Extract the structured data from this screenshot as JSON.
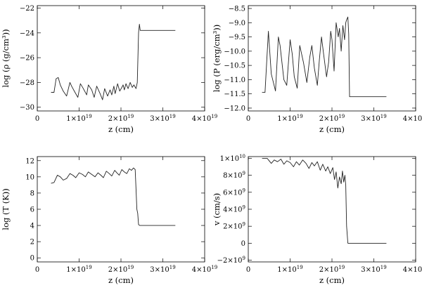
{
  "chart_data": [
    {
      "type": "line",
      "xlabel": "z (cm)",
      "ylabel": "log (ρ (g/cm³))",
      "xlim": [
        0,
        4e+19
      ],
      "ylim": [
        -30.3,
        -21.8
      ],
      "xticks": [
        {
          "value": 0,
          "label": "0"
        },
        {
          "value": 1e+19,
          "label": "1×10",
          "exp": "19"
        },
        {
          "value": 2e+19,
          "label": "2×10",
          "exp": "19"
        },
        {
          "value": 3e+19,
          "label": "3×10",
          "exp": "19"
        },
        {
          "value": 4e+19,
          "label": "4×10",
          "exp": "19"
        }
      ],
      "yticks": [
        {
          "value": -30,
          "label": "−30"
        },
        {
          "value": -28,
          "label": "−28"
        },
        {
          "value": -26,
          "label": "−26"
        },
        {
          "value": -24,
          "label": "−24"
        },
        {
          "value": -22,
          "label": "−22"
        }
      ],
      "x_unit": 1e+19,
      "x": [
        0.33,
        0.4,
        0.45,
        0.5,
        0.55,
        0.62,
        0.7,
        0.78,
        0.82,
        0.9,
        0.97,
        1.03,
        1.1,
        1.18,
        1.22,
        1.3,
        1.36,
        1.42,
        1.5,
        1.56,
        1.61,
        1.68,
        1.74,
        1.78,
        1.83,
        1.86,
        1.92,
        1.97,
        2.02,
        2.05,
        2.08,
        2.12,
        2.17,
        2.22,
        2.27,
        2.31,
        2.36,
        2.39,
        2.42,
        2.44,
        2.46,
        2.5,
        2.6,
        2.8,
        3.0,
        3.2,
        3.3
      ],
      "y": [
        -28.8,
        -28.8,
        -27.7,
        -27.6,
        -28.2,
        -28.7,
        -29.1,
        -28.0,
        -28.3,
        -28.8,
        -29.2,
        -28.1,
        -28.5,
        -29.0,
        -28.2,
        -28.6,
        -29.2,
        -28.3,
        -28.9,
        -29.4,
        -28.5,
        -29.1,
        -28.6,
        -29.0,
        -28.3,
        -28.9,
        -28.1,
        -28.7,
        -28.4,
        -28.2,
        -28.6,
        -28.1,
        -28.5,
        -28.0,
        -28.4,
        -28.2,
        -28.5,
        -28.0,
        -24.0,
        -23.3,
        -23.8,
        -23.8,
        -23.8,
        -23.8,
        -23.8,
        -23.8,
        -23.8
      ]
    },
    {
      "type": "line",
      "xlabel": "z (cm)",
      "ylabel": "log (P (erg/cm³))",
      "xlim": [
        0,
        4e+19
      ],
      "ylim": [
        -12.1,
        -8.4
      ],
      "xticks": [
        {
          "value": 0,
          "label": "0"
        },
        {
          "value": 1e+19,
          "label": "1×10",
          "exp": "19"
        },
        {
          "value": 2e+19,
          "label": "2×10",
          "exp": "19"
        },
        {
          "value": 3e+19,
          "label": "3×10",
          "exp": "19"
        },
        {
          "value": 4e+19,
          "label": "4×10",
          "exp": "19"
        }
      ],
      "yticks": [
        {
          "value": -12.0,
          "label": "−12.0"
        },
        {
          "value": -11.5,
          "label": "−11.5"
        },
        {
          "value": -11.0,
          "label": "−11.0"
        },
        {
          "value": -10.5,
          "label": "−10.5"
        },
        {
          "value": -10.0,
          "label": "−10.0"
        },
        {
          "value": -9.5,
          "label": "−9.5"
        },
        {
          "value": -9.0,
          "label": "−9.0"
        },
        {
          "value": -8.5,
          "label": "−8.5"
        }
      ],
      "x_unit": 1e+19,
      "x": [
        0.33,
        0.4,
        0.48,
        0.55,
        0.65,
        0.72,
        0.76,
        0.85,
        0.92,
        1.0,
        1.05,
        1.1,
        1.17,
        1.23,
        1.32,
        1.4,
        1.47,
        1.52,
        1.58,
        1.65,
        1.7,
        1.75,
        1.8,
        1.87,
        1.92,
        1.97,
        2.0,
        2.05,
        2.1,
        2.15,
        2.18,
        2.22,
        2.26,
        2.3,
        2.33,
        2.35,
        2.38,
        2.4,
        2.42,
        2.6,
        2.8,
        3.0,
        3.2,
        3.3
      ],
      "y": [
        -11.45,
        -11.45,
        -9.3,
        -10.8,
        -11.4,
        -9.5,
        -9.8,
        -11.0,
        -11.2,
        -9.6,
        -10.1,
        -10.9,
        -11.3,
        -9.8,
        -10.4,
        -11.1,
        -10.2,
        -9.8,
        -10.6,
        -11.2,
        -10.3,
        -9.5,
        -10.1,
        -10.9,
        -10.4,
        -9.3,
        -9.6,
        -10.7,
        -9.0,
        -9.5,
        -9.2,
        -10.0,
        -9.1,
        -9.6,
        -9.0,
        -8.9,
        -8.8,
        -9.4,
        -11.6,
        -11.6,
        -11.6,
        -11.6,
        -11.6,
        -11.6
      ]
    },
    {
      "type": "line",
      "xlabel": "z (cm)",
      "ylabel": "log (T (K))",
      "xlim": [
        0,
        4e+19
      ],
      "ylim": [
        -0.5,
        12.5
      ],
      "xticks": [
        {
          "value": 0,
          "label": "0"
        },
        {
          "value": 1e+19,
          "label": "1×10",
          "exp": "19"
        },
        {
          "value": 2e+19,
          "label": "2×10",
          "exp": "19"
        },
        {
          "value": 3e+19,
          "label": "3×10",
          "exp": "19"
        },
        {
          "value": 4e+19,
          "label": "4×10",
          "exp": "19"
        }
      ],
      "yticks": [
        {
          "value": 0,
          "label": "0"
        },
        {
          "value": 2,
          "label": "2"
        },
        {
          "value": 4,
          "label": "4"
        },
        {
          "value": 6,
          "label": "6"
        },
        {
          "value": 8,
          "label": "8"
        },
        {
          "value": 10,
          "label": "10"
        },
        {
          "value": 12,
          "label": "12"
        }
      ],
      "x_unit": 1e+19,
      "x": [
        0.33,
        0.4,
        0.48,
        0.55,
        0.62,
        0.7,
        0.78,
        0.85,
        0.92,
        1.0,
        1.08,
        1.15,
        1.22,
        1.3,
        1.38,
        1.45,
        1.52,
        1.58,
        1.65,
        1.72,
        1.78,
        1.85,
        1.9,
        1.96,
        2.02,
        2.08,
        2.14,
        2.2,
        2.25,
        2.3,
        2.34,
        2.36,
        2.38,
        2.4,
        2.42,
        2.45,
        2.6,
        2.8,
        3.0,
        3.2,
        3.3
      ],
      "y": [
        9.2,
        9.3,
        10.2,
        10.0,
        9.6,
        9.8,
        10.4,
        10.2,
        9.9,
        10.5,
        10.3,
        10.0,
        10.6,
        10.3,
        10.0,
        10.5,
        10.2,
        9.9,
        10.7,
        10.4,
        10.1,
        10.8,
        10.5,
        10.2,
        10.9,
        10.6,
        10.4,
        11.0,
        10.8,
        11.1,
        10.9,
        8.5,
        6.0,
        5.5,
        4.1,
        4.0,
        4.0,
        4.0,
        4.0,
        4.0,
        4.0
      ]
    },
    {
      "type": "line",
      "xlabel": "z (cm)",
      "ylabel": "v (cm/s)",
      "xlim": [
        0,
        4e+19
      ],
      "ylim": [
        -2200000000.0,
        10200000000.0
      ],
      "xticks": [
        {
          "value": 0,
          "label": "0"
        },
        {
          "value": 1e+19,
          "label": "1×10",
          "exp": "19"
        },
        {
          "value": 2e+19,
          "label": "2×10",
          "exp": "19"
        },
        {
          "value": 3e+19,
          "label": "3×10",
          "exp": "19"
        },
        {
          "value": 4e+19,
          "label": "4×10",
          "exp": "19"
        }
      ],
      "yticks": [
        {
          "value": -2000000000.0,
          "label": "−2×10",
          "exp": "9"
        },
        {
          "value": 0,
          "label": "0"
        },
        {
          "value": 2000000000.0,
          "label": "2×10",
          "exp": "9"
        },
        {
          "value": 4000000000.0,
          "label": "4×10",
          "exp": "9"
        },
        {
          "value": 6000000000.0,
          "label": "6×10",
          "exp": "9"
        },
        {
          "value": 8000000000.0,
          "label": "8×10",
          "exp": "9"
        },
        {
          "value": 10000000000.0,
          "label": "1×10",
          "exp": "10"
        }
      ],
      "x_unit": 1e+19,
      "x": [
        0.33,
        0.45,
        0.55,
        0.62,
        0.7,
        0.78,
        0.85,
        0.92,
        1.0,
        1.08,
        1.15,
        1.22,
        1.3,
        1.38,
        1.45,
        1.52,
        1.58,
        1.65,
        1.72,
        1.78,
        1.85,
        1.9,
        1.96,
        2.02,
        2.06,
        2.1,
        2.14,
        2.18,
        2.22,
        2.25,
        2.28,
        2.31,
        2.33,
        2.35,
        2.38,
        2.4,
        2.6,
        2.8,
        3.0,
        3.2,
        3.3
      ],
      "y": [
        10000000000.0,
        10000000000.0,
        9400000000.0,
        9800000000.0,
        9600000000.0,
        9900000000.0,
        9300000000.0,
        9700000000.0,
        9500000000.0,
        9000000000.0,
        9600000000.0,
        9200000000.0,
        9800000000.0,
        9400000000.0,
        8800000000.0,
        9500000000.0,
        9100000000.0,
        9600000000.0,
        8600000000.0,
        9300000000.0,
        8500000000.0,
        9000000000.0,
        8200000000.0,
        8900000000.0,
        7500000000.0,
        8400000000.0,
        6500000000.0,
        7800000000.0,
        7000000000.0,
        8500000000.0,
        7200000000.0,
        8000000000.0,
        6800000000.0,
        2000000000.0,
        0.0,
        0.0,
        0.0,
        0.0,
        0.0,
        0.0,
        0.0
      ]
    }
  ]
}
